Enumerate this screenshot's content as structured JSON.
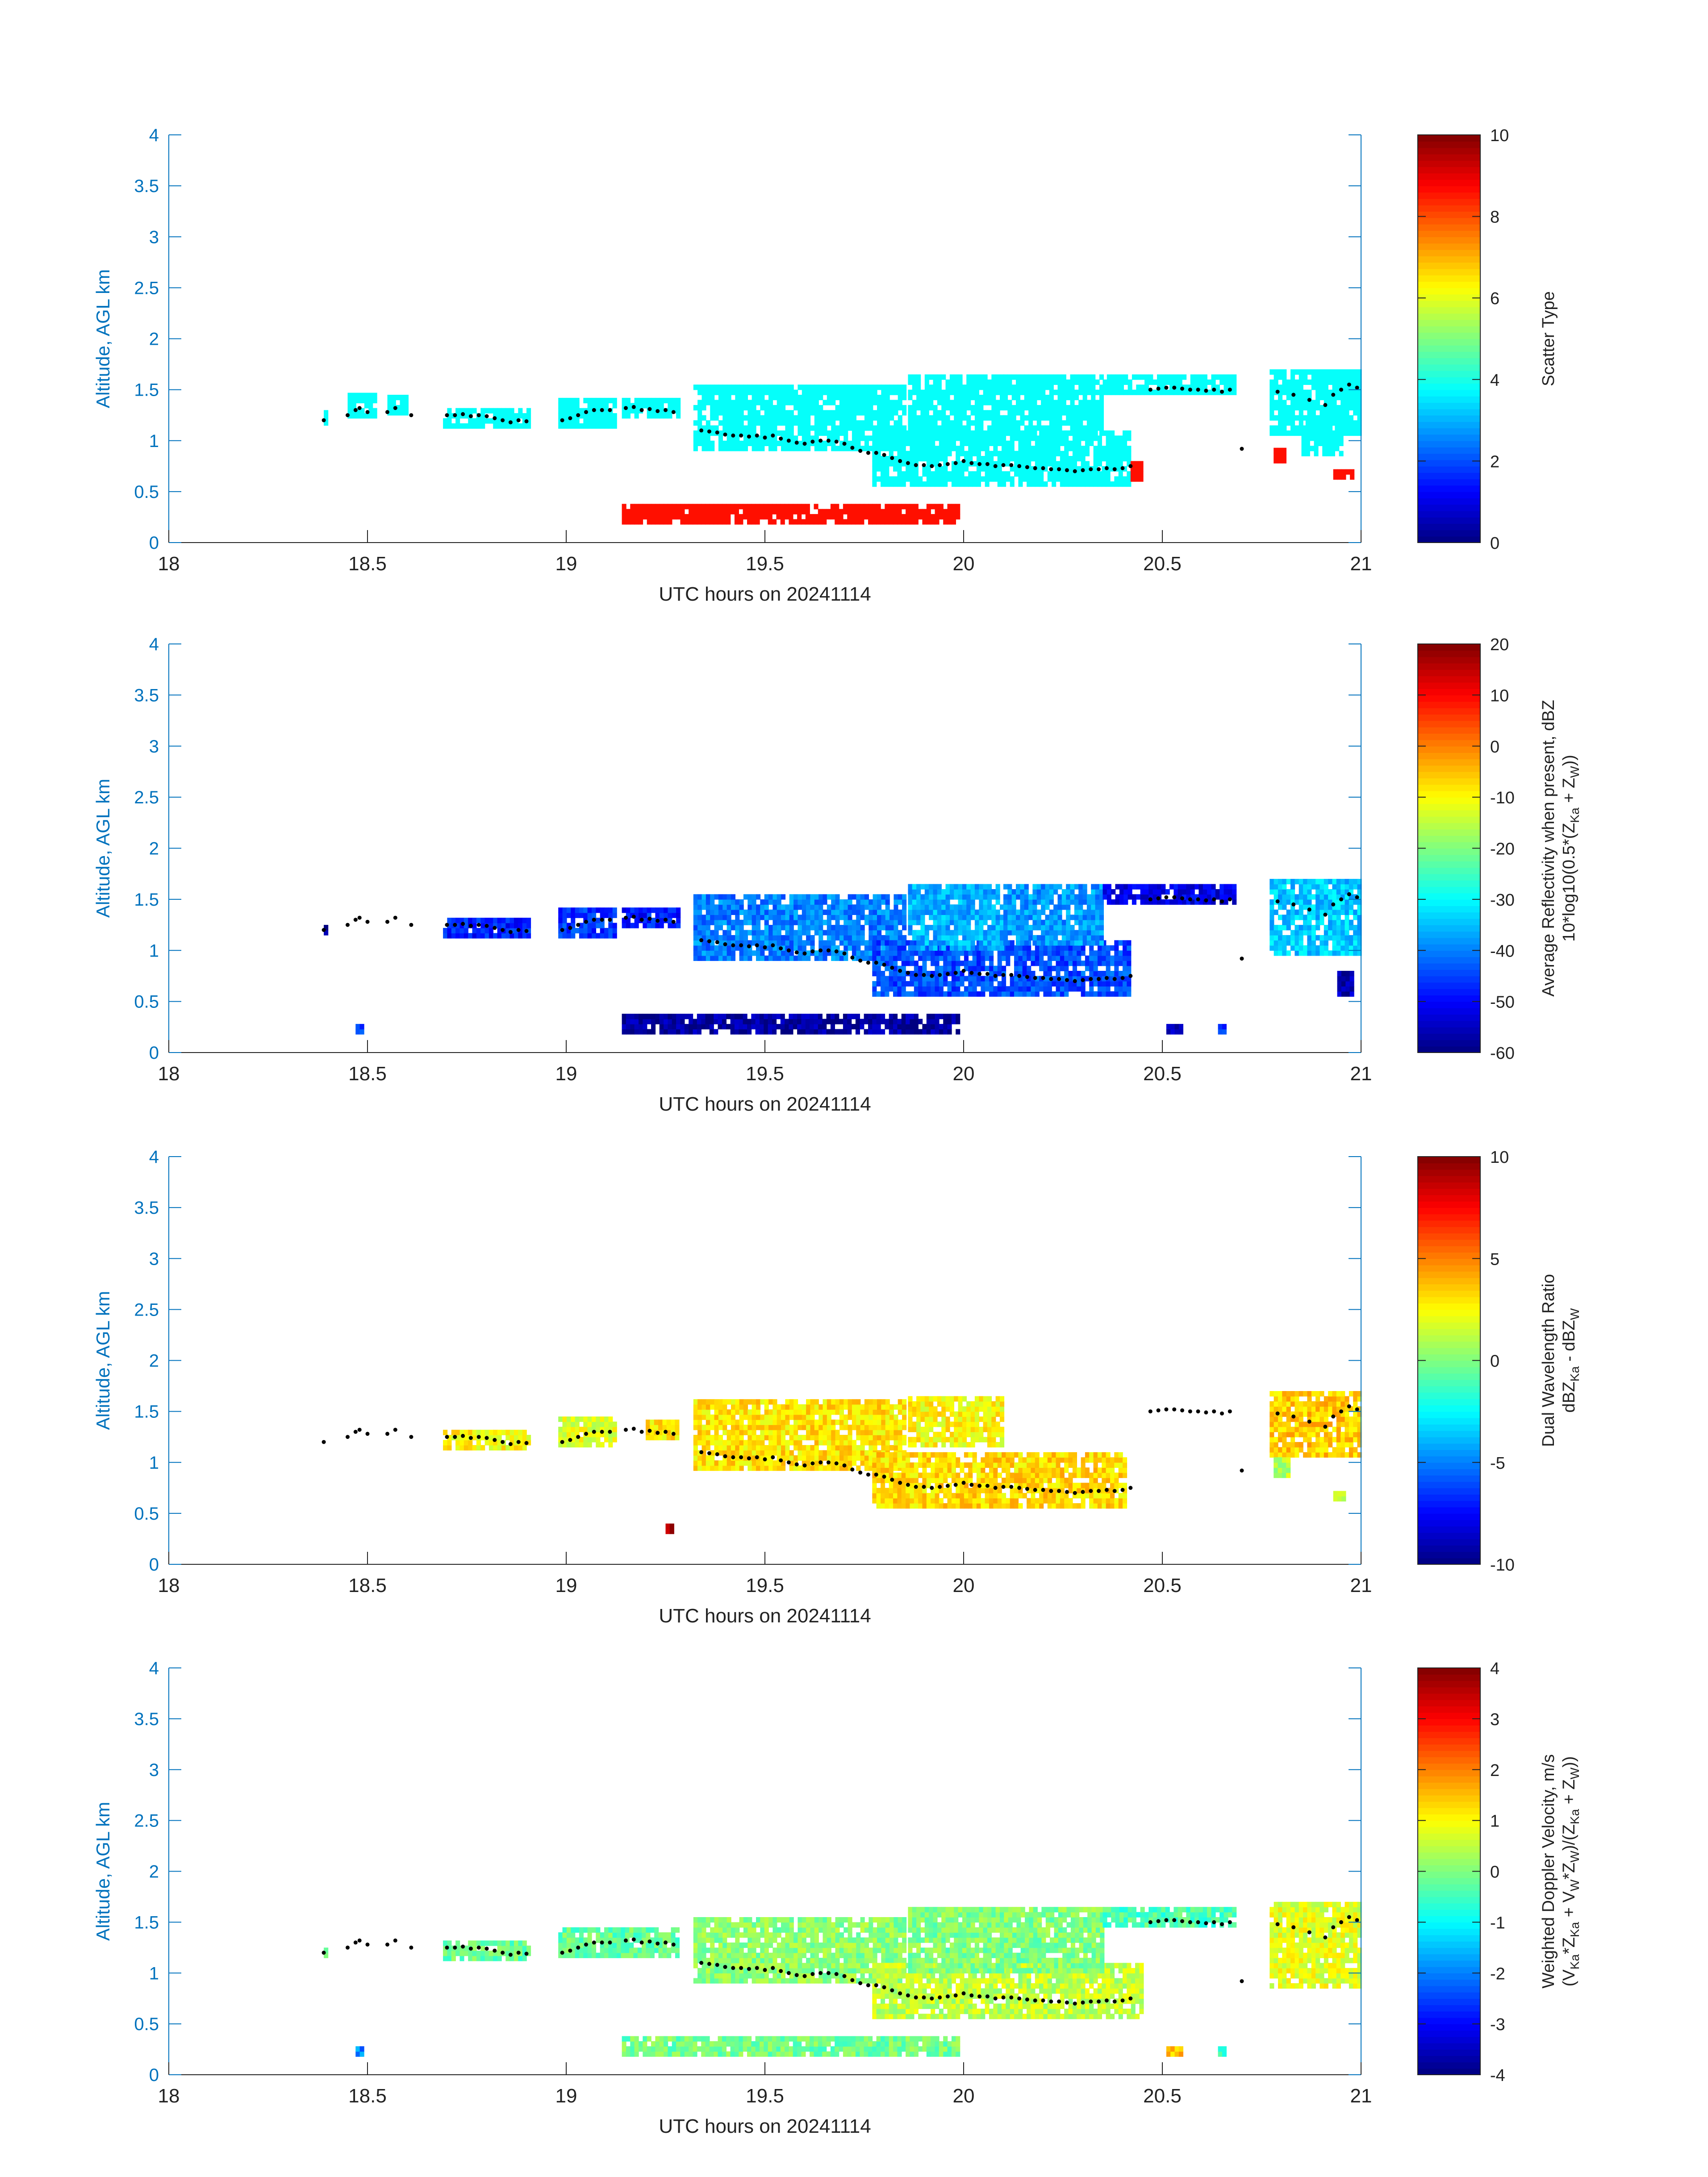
{
  "figure": {
    "xlim": [
      18,
      21
    ],
    "ylim": [
      0,
      4
    ],
    "xticks": [
      18,
      18.5,
      19,
      19.5,
      20,
      20.5,
      21
    ],
    "xtick_labels": [
      "18",
      "18.5",
      "19",
      "19.5",
      "20",
      "20.5",
      "21"
    ],
    "yticks": [
      0,
      0.5,
      1,
      1.5,
      2,
      2.5,
      3,
      3.5,
      4
    ],
    "ytick_labels": [
      "0",
      "0.5",
      "1",
      "1.5",
      "2",
      "2.5",
      "3",
      "3.5",
      "4"
    ],
    "axis_color": "#0072bd",
    "xlabel": "UTC hours on 20241114",
    "ylabel": "Altitude, AGL km",
    "colormap": "jet"
  },
  "chart_data": [
    {
      "type": "heatmap",
      "name": "scatter-type",
      "xlabel": "UTC hours on 20241114",
      "ylabel": "Altitude, AGL km",
      "xlim": [
        18,
        21
      ],
      "ylim": [
        0,
        4
      ],
      "colorbar": {
        "min": 0,
        "max": 10,
        "ticks": [
          "0",
          "2",
          "4",
          "6",
          "8",
          "10"
        ],
        "label_lines": [
          "Scatter Type"
        ]
      },
      "regions": [
        {
          "x": [
            18.39,
            18.4
          ],
          "y": [
            1.15,
            1.3
          ],
          "value": 3.8
        },
        {
          "x": [
            18.45,
            18.52
          ],
          "y": [
            1.22,
            1.45
          ],
          "value": 3.8
        },
        {
          "x": [
            18.55,
            18.6
          ],
          "y": [
            1.25,
            1.45
          ],
          "value": 3.8
        },
        {
          "x": [
            18.69,
            18.91
          ],
          "y": [
            1.12,
            1.32
          ],
          "value": 3.8
        },
        {
          "x": [
            18.98,
            19.12
          ],
          "y": [
            1.12,
            1.42
          ],
          "value": 3.8
        },
        {
          "x": [
            19.14,
            19.28
          ],
          "y": [
            1.22,
            1.42
          ],
          "value": 3.8
        },
        {
          "x": [
            19.32,
            19.85
          ],
          "y": [
            0.9,
            1.55
          ],
          "value": 3.8
        },
        {
          "x": [
            19.77,
            20.42
          ],
          "y": [
            0.55,
            1.1
          ],
          "value": 3.8
        },
        {
          "x": [
            19.86,
            20.1
          ],
          "y": [
            1.0,
            1.62
          ],
          "value": 3.8
        },
        {
          "x": [
            20.1,
            20.35
          ],
          "y": [
            1.05,
            1.62
          ],
          "value": 3.8
        },
        {
          "x": [
            20.35,
            20.68
          ],
          "y": [
            1.45,
            1.62
          ],
          "value": 3.8
        },
        {
          "x": [
            20.77,
            21.0
          ],
          "y": [
            1.05,
            1.68
          ],
          "value": 3.8
        },
        {
          "x": [
            20.85,
            20.95
          ],
          "y": [
            0.85,
            1.2
          ],
          "value": 3.8
        },
        {
          "x": [
            19.14,
            19.98
          ],
          "y": [
            0.18,
            0.38
          ],
          "value": 8.6
        },
        {
          "x": [
            20.42,
            20.45
          ],
          "y": [
            0.6,
            0.78
          ],
          "value": 8.6
        },
        {
          "x": [
            20.78,
            20.81
          ],
          "y": [
            0.78,
            0.92
          ],
          "value": 8.6
        },
        {
          "x": [
            20.93,
            20.98
          ],
          "y": [
            0.62,
            0.72
          ],
          "value": 8.6
        }
      ]
    },
    {
      "type": "heatmap",
      "name": "average-reflectivity",
      "xlabel": "UTC hours on 20241114",
      "ylabel": "Altitude, AGL km",
      "xlim": [
        18,
        21
      ],
      "ylim": [
        0,
        4
      ],
      "colorbar": {
        "min": -60,
        "max": 20,
        "ticks": [
          "-60",
          "-50",
          "-40",
          "-30",
          "-20",
          "-10",
          "0",
          "10",
          "20"
        ],
        "label_lines": [
          "Average Reflectivity when present, dBZ",
          "10*log10(0.5*(Z",
          "Ka",
          " + Z",
          "W",
          "))"
        ]
      },
      "regions": [
        {
          "x": [
            18.39,
            18.4
          ],
          "y": [
            1.15,
            1.25
          ],
          "value": -58
        },
        {
          "x": [
            18.69,
            18.91
          ],
          "y": [
            1.12,
            1.32
          ],
          "value": -48
        },
        {
          "x": [
            18.98,
            19.12
          ],
          "y": [
            1.12,
            1.42
          ],
          "value": -46
        },
        {
          "x": [
            19.14,
            19.28
          ],
          "y": [
            1.22,
            1.42
          ],
          "value": -48
        },
        {
          "x": [
            19.32,
            19.85
          ],
          "y": [
            0.9,
            1.55
          ],
          "value": -40
        },
        {
          "x": [
            19.77,
            20.42
          ],
          "y": [
            0.55,
            1.1
          ],
          "value": -44
        },
        {
          "x": [
            19.86,
            20.1
          ],
          "y": [
            1.0,
            1.62
          ],
          "value": -36
        },
        {
          "x": [
            20.1,
            20.35
          ],
          "y": [
            1.05,
            1.62
          ],
          "value": -38
        },
        {
          "x": [
            20.35,
            20.68
          ],
          "y": [
            1.45,
            1.62
          ],
          "value": -52
        },
        {
          "x": [
            20.77,
            21.0
          ],
          "y": [
            0.95,
            1.68
          ],
          "value": -34
        },
        {
          "x": [
            19.14,
            19.98
          ],
          "y": [
            0.18,
            0.38
          ],
          "value": -58
        },
        {
          "x": [
            18.47,
            18.49
          ],
          "y": [
            0.18,
            0.28
          ],
          "value": -44
        },
        {
          "x": [
            20.94,
            20.98
          ],
          "y": [
            0.55,
            0.8
          ],
          "value": -56
        },
        {
          "x": [
            20.51,
            20.55
          ],
          "y": [
            0.18,
            0.26
          ],
          "value": -56
        },
        {
          "x": [
            20.64,
            20.66
          ],
          "y": [
            0.18,
            0.26
          ],
          "value": -46
        }
      ]
    },
    {
      "type": "heatmap",
      "name": "dual-wavelength-ratio",
      "xlabel": "UTC hours on 20241114",
      "ylabel": "Altitude, AGL km",
      "xlim": [
        18,
        21
      ],
      "ylim": [
        0,
        4
      ],
      "colorbar": {
        "min": -10,
        "max": 10,
        "ticks": [
          "-10",
          "-5",
          "0",
          "5",
          "10"
        ],
        "label_lines": [
          "Dual Wavelength Ratio",
          "dBZ",
          "Ka",
          " - dBZ",
          "W"
        ]
      },
      "regions": [
        {
          "x": [
            18.69,
            18.91
          ],
          "y": [
            1.12,
            1.32
          ],
          "value": 2.5
        },
        {
          "x": [
            18.98,
            19.12
          ],
          "y": [
            1.15,
            1.42
          ],
          "value": 2.0
        },
        {
          "x": [
            19.2,
            19.28
          ],
          "y": [
            1.22,
            1.42
          ],
          "value": 3.0
        },
        {
          "x": [
            19.32,
            19.85
          ],
          "y": [
            0.92,
            1.58
          ],
          "value": 3.0
        },
        {
          "x": [
            19.77,
            20.4
          ],
          "y": [
            0.55,
            1.1
          ],
          "value": 3.2
        },
        {
          "x": [
            19.86,
            20.1
          ],
          "y": [
            1.15,
            1.62
          ],
          "value": 2.5
        },
        {
          "x": [
            20.77,
            21.0
          ],
          "y": [
            1.05,
            1.68
          ],
          "value": 3.5
        },
        {
          "x": [
            20.78,
            20.82
          ],
          "y": [
            0.85,
            1.05
          ],
          "value": 1.0
        },
        {
          "x": [
            20.93,
            20.96
          ],
          "y": [
            0.62,
            0.72
          ],
          "value": 1.0
        },
        {
          "x": [
            19.25,
            19.27
          ],
          "y": [
            0.3,
            0.36
          ],
          "value": 9.0
        }
      ]
    },
    {
      "type": "heatmap",
      "name": "weighted-doppler-velocity",
      "xlabel": "UTC hours on 20241114",
      "ylabel": "Altitude, AGL km",
      "xlim": [
        18,
        21
      ],
      "ylim": [
        0,
        4
      ],
      "colorbar": {
        "min": -4,
        "max": 4,
        "ticks": [
          "-4",
          "-3",
          "-2",
          "-1",
          "0",
          "1",
          "2",
          "3",
          "4"
        ],
        "label_lines": [
          "Weighted Doppler Velocity, m/s",
          "(V",
          "Ka",
          "*Z",
          "Ka",
          " + V",
          "W",
          "*Z",
          "W",
          ")/(Z",
          "Ka",
          " + Z",
          "W",
          "))"
        ]
      },
      "regions": [
        {
          "x": [
            18.39,
            18.4
          ],
          "y": [
            1.15,
            1.25
          ],
          "value": -0.3
        },
        {
          "x": [
            18.69,
            18.91
          ],
          "y": [
            1.12,
            1.32
          ],
          "value": -0.2
        },
        {
          "x": [
            18.98,
            19.28
          ],
          "y": [
            1.15,
            1.42
          ],
          "value": -0.2
        },
        {
          "x": [
            19.32,
            19.85
          ],
          "y": [
            0.9,
            1.55
          ],
          "value": 0.1
        },
        {
          "x": [
            19.77,
            20.45
          ],
          "y": [
            0.55,
            1.1
          ],
          "value": 0.5
        },
        {
          "x": [
            19.86,
            20.35
          ],
          "y": [
            1.0,
            1.62
          ],
          "value": 0.0
        },
        {
          "x": [
            20.35,
            20.68
          ],
          "y": [
            1.45,
            1.62
          ],
          "value": -0.4
        },
        {
          "x": [
            20.77,
            21.0
          ],
          "y": [
            0.85,
            1.68
          ],
          "value": 0.8
        },
        {
          "x": [
            19.14,
            19.98
          ],
          "y": [
            0.18,
            0.38
          ],
          "value": -0.1
        },
        {
          "x": [
            18.47,
            18.49
          ],
          "y": [
            0.18,
            0.28
          ],
          "value": -2.0
        },
        {
          "x": [
            20.51,
            20.55
          ],
          "y": [
            0.18,
            0.26
          ],
          "value": 1.5
        },
        {
          "x": [
            20.64,
            20.66
          ],
          "y": [
            0.18,
            0.26
          ],
          "value": -0.5
        }
      ]
    }
  ],
  "cloud_base_markers": {
    "x": [
      18.39,
      18.45,
      18.47,
      18.48,
      18.5,
      18.55,
      18.57,
      18.61,
      18.7,
      18.72,
      18.74,
      18.76,
      18.78,
      18.8,
      18.82,
      18.84,
      18.86,
      18.88,
      18.9,
      18.99,
      19.01,
      19.03,
      19.05,
      19.07,
      19.09,
      19.11,
      19.15,
      19.17,
      19.19,
      19.21,
      19.23,
      19.25,
      19.27,
      19.34,
      19.36,
      19.38,
      19.4,
      19.42,
      19.44,
      19.46,
      19.48,
      19.5,
      19.52,
      19.54,
      19.56,
      19.58,
      19.6,
      19.62,
      19.64,
      19.66,
      19.68,
      19.7,
      19.72,
      19.74,
      19.76,
      19.78,
      19.8,
      19.82,
      19.84,
      19.86,
      19.88,
      19.9,
      19.92,
      19.94,
      19.96,
      19.98,
      20.0,
      20.02,
      20.04,
      20.06,
      20.08,
      20.1,
      20.12,
      20.14,
      20.16,
      20.18,
      20.2,
      20.22,
      20.24,
      20.26,
      20.28,
      20.3,
      20.32,
      20.34,
      20.36,
      20.38,
      20.4,
      20.42,
      20.47,
      20.49,
      20.51,
      20.53,
      20.55,
      20.57,
      20.59,
      20.61,
      20.63,
      20.65,
      20.67,
      20.7,
      20.79,
      20.83,
      20.87,
      20.91,
      20.93,
      20.95,
      20.97,
      20.99
    ],
    "y": [
      1.2,
      1.25,
      1.3,
      1.32,
      1.28,
      1.28,
      1.32,
      1.25,
      1.25,
      1.25,
      1.26,
      1.24,
      1.25,
      1.24,
      1.22,
      1.2,
      1.18,
      1.2,
      1.19,
      1.2,
      1.22,
      1.25,
      1.28,
      1.3,
      1.3,
      1.3,
      1.32,
      1.33,
      1.3,
      1.31,
      1.29,
      1.3,
      1.28,
      1.1,
      1.09,
      1.08,
      1.06,
      1.05,
      1.05,
      1.04,
      1.05,
      1.03,
      1.05,
      1.02,
      1.0,
      0.98,
      0.97,
      0.99,
      1.0,
      1.0,
      0.99,
      0.97,
      0.93,
      0.9,
      0.88,
      0.88,
      0.86,
      0.83,
      0.8,
      0.78,
      0.76,
      0.76,
      0.75,
      0.76,
      0.77,
      0.78,
      0.8,
      0.78,
      0.77,
      0.77,
      0.75,
      0.76,
      0.76,
      0.75,
      0.74,
      0.73,
      0.73,
      0.72,
      0.72,
      0.71,
      0.7,
      0.71,
      0.72,
      0.72,
      0.73,
      0.72,
      0.73,
      0.75,
      1.5,
      1.51,
      1.52,
      1.52,
      1.51,
      1.5,
      1.5,
      1.49,
      1.5,
      1.48,
      1.5,
      0.92,
      1.48,
      1.45,
      1.4,
      1.35,
      1.45,
      1.5,
      1.55,
      1.52
    ]
  }
}
